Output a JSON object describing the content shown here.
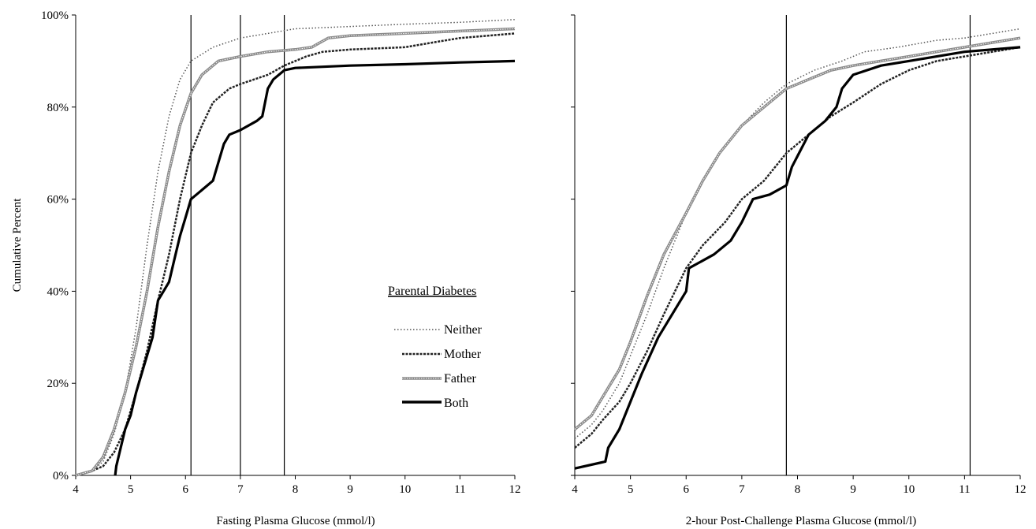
{
  "chart_data": [
    {
      "type": "line",
      "xlabel": "Fasting Plasma Glucose (mmol/l)",
      "ylabel": "Cumulative Percent",
      "xlim": [
        4,
        12
      ],
      "ylim": [
        0,
        100
      ],
      "x_ticks": [
        "4",
        "5",
        "6",
        "7",
        "8",
        "9",
        "10",
        "11",
        "12"
      ],
      "y_ticks": [
        "0%",
        "20%",
        "40%",
        "60%",
        "80%",
        "100%"
      ],
      "y_tick_labels_visible": true,
      "reference_lines_x": [
        6.1,
        7.0,
        7.8
      ],
      "grid": false,
      "legend": {
        "title": "Parental Diabetes",
        "placement": "center-right",
        "entries": [
          "Neither",
          "Mother",
          "Father",
          "Both"
        ]
      },
      "series": [
        {
          "name": "Neither",
          "style": "dotted",
          "color": "#555555",
          "points": [
            [
              4,
              0
            ],
            [
              4.3,
              1
            ],
            [
              4.5,
              3
            ],
            [
              4.7,
              9
            ],
            [
              4.9,
              18
            ],
            [
              5.1,
              32
            ],
            [
              5.3,
              50
            ],
            [
              5.5,
              66
            ],
            [
              5.7,
              78
            ],
            [
              5.9,
              86
            ],
            [
              6.1,
              90
            ],
            [
              6.5,
              93
            ],
            [
              7.0,
              95
            ],
            [
              7.5,
              96
            ],
            [
              8.0,
              97
            ],
            [
              9.0,
              97.5
            ],
            [
              10.0,
              98
            ],
            [
              11.0,
              98.4
            ],
            [
              12.0,
              99
            ]
          ]
        },
        {
          "name": "Mother",
          "style": "dashed",
          "color": "#222222",
          "points": [
            [
              4,
              0
            ],
            [
              4.3,
              1
            ],
            [
              4.5,
              2
            ],
            [
              4.7,
              5
            ],
            [
              4.9,
              10
            ],
            [
              5.1,
              18
            ],
            [
              5.3,
              27
            ],
            [
              5.5,
              38
            ],
            [
              5.7,
              48
            ],
            [
              5.9,
              60
            ],
            [
              6.1,
              70
            ],
            [
              6.3,
              76
            ],
            [
              6.5,
              81
            ],
            [
              6.8,
              84
            ],
            [
              7.0,
              85
            ],
            [
              7.5,
              87
            ],
            [
              7.8,
              89
            ],
            [
              8.2,
              91
            ],
            [
              8.5,
              92
            ],
            [
              9.0,
              92.5
            ],
            [
              10.0,
              93
            ],
            [
              10.5,
              94
            ],
            [
              11.0,
              95
            ],
            [
              12.0,
              96
            ]
          ]
        },
        {
          "name": "Father",
          "style": "double",
          "color": "#777777",
          "points": [
            [
              4,
              0
            ],
            [
              4.3,
              1
            ],
            [
              4.5,
              4
            ],
            [
              4.7,
              10
            ],
            [
              4.9,
              18
            ],
            [
              5.1,
              28
            ],
            [
              5.3,
              40
            ],
            [
              5.5,
              54
            ],
            [
              5.7,
              66
            ],
            [
              5.9,
              76
            ],
            [
              6.1,
              83
            ],
            [
              6.3,
              87
            ],
            [
              6.6,
              90
            ],
            [
              7.0,
              91
            ],
            [
              7.5,
              92
            ],
            [
              8.0,
              92.5
            ],
            [
              8.3,
              93
            ],
            [
              8.6,
              95
            ],
            [
              9.0,
              95.5
            ],
            [
              10.0,
              96
            ],
            [
              11.0,
              96.5
            ],
            [
              12.0,
              97
            ]
          ]
        },
        {
          "name": "Both",
          "style": "solid",
          "color": "#000000",
          "points": [
            [
              4.72,
              0
            ],
            [
              4.74,
              2
            ],
            [
              4.8,
              5
            ],
            [
              4.9,
              10
            ],
            [
              5.0,
              13
            ],
            [
              5.1,
              18
            ],
            [
              5.25,
              24
            ],
            [
              5.4,
              30
            ],
            [
              5.5,
              38
            ],
            [
              5.6,
              40
            ],
            [
              5.7,
              42
            ],
            [
              5.8,
              47
            ],
            [
              5.9,
              52
            ],
            [
              6.0,
              56
            ],
            [
              6.1,
              60
            ],
            [
              6.2,
              61
            ],
            [
              6.4,
              63
            ],
            [
              6.5,
              64
            ],
            [
              6.6,
              68
            ],
            [
              6.7,
              72
            ],
            [
              6.8,
              74
            ],
            [
              7.0,
              75
            ],
            [
              7.3,
              77
            ],
            [
              7.4,
              78
            ],
            [
              7.5,
              84
            ],
            [
              7.6,
              86
            ],
            [
              7.8,
              88
            ],
            [
              8.0,
              88.5
            ],
            [
              9.0,
              89
            ],
            [
              10.0,
              89.3
            ],
            [
              11.0,
              89.7
            ],
            [
              12.0,
              90
            ]
          ]
        }
      ]
    },
    {
      "type": "line",
      "xlabel": "2-hour Post-Challenge Plasma Glucose (mmol/l)",
      "xlim": [
        4,
        12
      ],
      "ylim": [
        0,
        100
      ],
      "x_ticks": [
        "4",
        "5",
        "6",
        "7",
        "8",
        "9",
        "10",
        "11",
        "12"
      ],
      "y_tick_labels_visible": false,
      "reference_lines_x": [
        7.8,
        11.1
      ],
      "grid": false,
      "series": [
        {
          "name": "Neither",
          "style": "dotted",
          "color": "#555555",
          "points": [
            [
              4,
              8
            ],
            [
              4.3,
              11
            ],
            [
              4.5,
              14
            ],
            [
              4.8,
              20
            ],
            [
              5.0,
              26
            ],
            [
              5.3,
              35
            ],
            [
              5.6,
              45
            ],
            [
              6.0,
              57
            ],
            [
              6.3,
              64
            ],
            [
              6.6,
              70
            ],
            [
              7.0,
              76
            ],
            [
              7.4,
              81
            ],
            [
              7.8,
              85
            ],
            [
              8.3,
              88
            ],
            [
              8.8,
              90
            ],
            [
              9.2,
              92
            ],
            [
              9.8,
              93
            ],
            [
              10.5,
              94.5
            ],
            [
              11.0,
              95
            ],
            [
              11.5,
              96
            ],
            [
              12,
              97
            ]
          ]
        },
        {
          "name": "Mother",
          "style": "dashed",
          "color": "#222222",
          "points": [
            [
              4,
              6
            ],
            [
              4.3,
              9
            ],
            [
              4.5,
              12
            ],
            [
              4.8,
              16
            ],
            [
              5.0,
              20
            ],
            [
              5.3,
              27
            ],
            [
              5.6,
              35
            ],
            [
              6.0,
              45
            ],
            [
              6.3,
              50
            ],
            [
              6.7,
              55
            ],
            [
              7.0,
              60
            ],
            [
              7.4,
              64
            ],
            [
              7.8,
              70
            ],
            [
              8.2,
              74
            ],
            [
              8.6,
              78
            ],
            [
              9.0,
              81
            ],
            [
              9.5,
              85
            ],
            [
              10.0,
              88
            ],
            [
              10.5,
              90
            ],
            [
              11.0,
              91
            ],
            [
              11.5,
              92
            ],
            [
              12,
              93
            ]
          ]
        },
        {
          "name": "Father",
          "style": "double",
          "color": "#777777",
          "points": [
            [
              4,
              10
            ],
            [
              4.3,
              13
            ],
            [
              4.5,
              17
            ],
            [
              4.8,
              23
            ],
            [
              5.0,
              29
            ],
            [
              5.3,
              39
            ],
            [
              5.6,
              48
            ],
            [
              6.0,
              57
            ],
            [
              6.3,
              64
            ],
            [
              6.6,
              70
            ],
            [
              7.0,
              76
            ],
            [
              7.4,
              80
            ],
            [
              7.8,
              84
            ],
            [
              8.2,
              86
            ],
            [
              8.6,
              88
            ],
            [
              9.0,
              89
            ],
            [
              9.5,
              90
            ],
            [
              10.0,
              91
            ],
            [
              10.5,
              92
            ],
            [
              11.0,
              93
            ],
            [
              11.5,
              94
            ],
            [
              12,
              95
            ]
          ]
        },
        {
          "name": "Both",
          "style": "solid",
          "color": "#000000",
          "points": [
            [
              4,
              1.5
            ],
            [
              4.55,
              3
            ],
            [
              4.6,
              6
            ],
            [
              4.8,
              10
            ],
            [
              5.0,
              16
            ],
            [
              5.2,
              22
            ],
            [
              5.5,
              30
            ],
            [
              5.8,
              36
            ],
            [
              6.0,
              40
            ],
            [
              6.05,
              45
            ],
            [
              6.2,
              46
            ],
            [
              6.5,
              48
            ],
            [
              6.8,
              51
            ],
            [
              7.0,
              55
            ],
            [
              7.2,
              60
            ],
            [
              7.5,
              61
            ],
            [
              7.8,
              63
            ],
            [
              7.9,
              67
            ],
            [
              8.2,
              74
            ],
            [
              8.5,
              77
            ],
            [
              8.7,
              80
            ],
            [
              8.8,
              84
            ],
            [
              9.0,
              87
            ],
            [
              9.5,
              89
            ],
            [
              10.0,
              90
            ],
            [
              11.0,
              92
            ],
            [
              12,
              93
            ]
          ]
        }
      ]
    }
  ]
}
